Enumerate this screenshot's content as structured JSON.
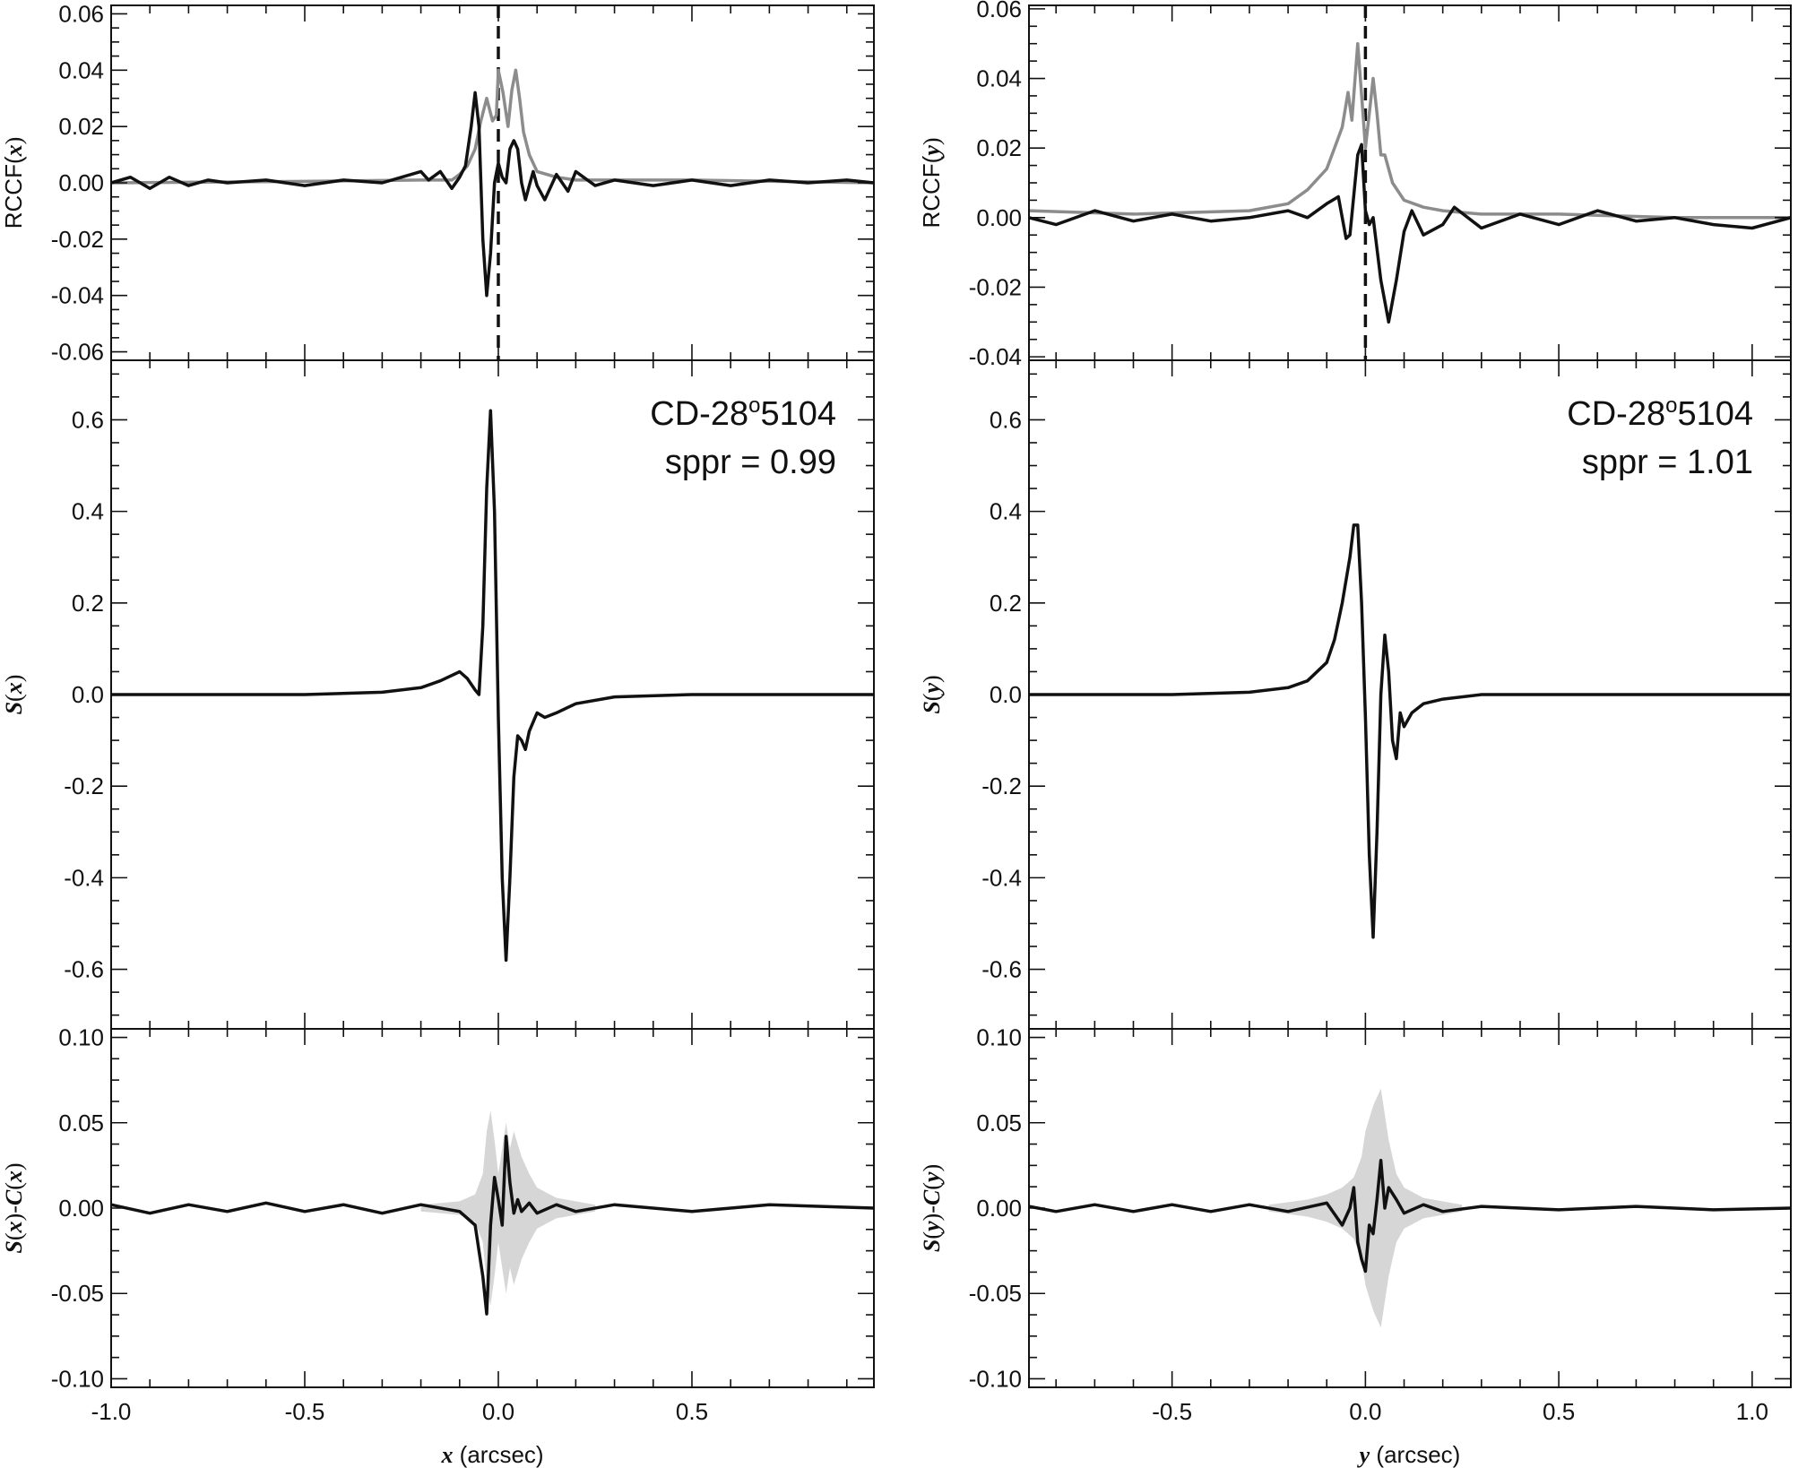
{
  "colors": {
    "black": "#111111",
    "gray": "#8c8c8c",
    "band": "#d6d6d6"
  },
  "chart_data": [
    {
      "id": "x-rccf",
      "type": "line",
      "ylabel": "RCCF(x)",
      "ylabel_parts": [
        "RCCF(",
        "x",
        ")"
      ],
      "xlim": [
        -1.0,
        0.97
      ],
      "ylim": [
        -0.063,
        0.063
      ],
      "yticks": [
        "0.06",
        "0.04",
        "0.02",
        "0.00",
        "-0.02",
        "-0.04",
        "-0.06"
      ],
      "vline": 0.0,
      "series": [
        {
          "color": "gray",
          "x": [
            -1.0,
            -0.5,
            -0.2,
            -0.12,
            -0.1,
            -0.08,
            -0.06,
            -0.045,
            -0.03,
            -0.015,
            -0.005,
            0.0,
            0.012,
            0.025,
            0.035,
            0.045,
            0.055,
            0.065,
            0.08,
            0.1,
            0.15,
            0.2,
            0.3,
            0.5,
            0.97
          ],
          "y": [
            0.0,
            0.0005,
            0.001,
            0.001,
            0.003,
            0.006,
            0.012,
            0.022,
            0.03,
            0.022,
            0.024,
            0.04,
            0.032,
            0.02,
            0.033,
            0.04,
            0.03,
            0.018,
            0.01,
            0.004,
            0.002,
            0.001,
            0.001,
            0.001,
            0.0
          ]
        },
        {
          "color": "black",
          "x": [
            -1.0,
            -0.95,
            -0.9,
            -0.85,
            -0.8,
            -0.75,
            -0.7,
            -0.6,
            -0.5,
            -0.4,
            -0.3,
            -0.2,
            -0.18,
            -0.15,
            -0.12,
            -0.1,
            -0.085,
            -0.07,
            -0.06,
            -0.05,
            -0.04,
            -0.03,
            -0.02,
            -0.01,
            0.0,
            0.01,
            0.02,
            0.03,
            0.04,
            0.05,
            0.06,
            0.07,
            0.08,
            0.09,
            0.1,
            0.12,
            0.15,
            0.18,
            0.2,
            0.22,
            0.25,
            0.3,
            0.4,
            0.5,
            0.6,
            0.7,
            0.8,
            0.9,
            0.97
          ],
          "y": [
            0.0,
            0.002,
            -0.002,
            0.002,
            -0.001,
            0.001,
            0.0,
            0.001,
            -0.001,
            0.001,
            0.0,
            0.004,
            0.001,
            0.004,
            -0.002,
            0.002,
            0.006,
            0.02,
            0.032,
            0.02,
            -0.02,
            -0.04,
            -0.025,
            0.0,
            0.007,
            0.002,
            0.0,
            0.012,
            0.015,
            0.012,
            0.0,
            -0.006,
            -0.001,
            0.004,
            -0.001,
            -0.006,
            0.003,
            -0.003,
            0.004,
            0.002,
            -0.001,
            0.001,
            -0.001,
            0.001,
            -0.001,
            0.001,
            0.0,
            0.001,
            0.0
          ]
        }
      ]
    },
    {
      "id": "x-s",
      "type": "line",
      "ylabel": "S(x)",
      "ylabel_parts": [
        "",
        "S",
        "(",
        "x",
        ")"
      ],
      "xlim": [
        -1.0,
        0.97
      ],
      "ylim": [
        -0.73,
        0.73
      ],
      "yticks": [
        "0.6",
        "0.4",
        "0.2",
        "0.0",
        "-0.2",
        "-0.4",
        "-0.6"
      ],
      "annotation": {
        "line1": "CD-28",
        "superscript": "o",
        "line1_rest": "5104",
        "line2": "sppr = 0.99"
      },
      "series": [
        {
          "color": "black",
          "x": [
            -1.0,
            -0.5,
            -0.3,
            -0.2,
            -0.15,
            -0.1,
            -0.08,
            -0.06,
            -0.05,
            -0.04,
            -0.03,
            -0.02,
            -0.01,
            0.0,
            0.01,
            0.02,
            0.03,
            0.04,
            0.05,
            0.06,
            0.07,
            0.08,
            0.1,
            0.12,
            0.15,
            0.2,
            0.3,
            0.5,
            0.97
          ],
          "y": [
            0.0,
            0.0,
            0.005,
            0.015,
            0.03,
            0.05,
            0.035,
            0.01,
            0.0,
            0.15,
            0.45,
            0.62,
            0.4,
            -0.05,
            -0.4,
            -0.58,
            -0.4,
            -0.18,
            -0.09,
            -0.1,
            -0.12,
            -0.08,
            -0.04,
            -0.05,
            -0.04,
            -0.02,
            -0.005,
            0.0,
            0.0
          ]
        }
      ]
    },
    {
      "id": "x-res",
      "type": "line",
      "ylabel": "S(x)-C(x)",
      "ylabel_parts": [
        "S",
        "(",
        "x",
        ")-",
        "C",
        "(",
        "x",
        ")"
      ],
      "xlim": [
        -1.0,
        0.97
      ],
      "ylim": [
        -0.105,
        0.105
      ],
      "yticks": [
        "0.10",
        "0.05",
        "0.00",
        "-0.05",
        "-0.10"
      ],
      "xticks": [
        "-1.0",
        "-0.5",
        "0.0",
        "0.5"
      ],
      "xlabel": "x (arcsec)",
      "xlabel_parts": [
        "x",
        " (arcsec)"
      ],
      "band": {
        "x": [
          -0.2,
          -0.1,
          -0.06,
          -0.04,
          -0.03,
          -0.02,
          -0.01,
          0.0,
          0.01,
          0.02,
          0.03,
          0.04,
          0.06,
          0.08,
          0.1,
          0.15,
          0.25
        ],
        "half": [
          0.002,
          0.004,
          0.008,
          0.02,
          0.045,
          0.057,
          0.04,
          0.02,
          0.035,
          0.05,
          0.035,
          0.045,
          0.03,
          0.02,
          0.012,
          0.006,
          0.002
        ]
      },
      "series": [
        {
          "color": "black",
          "x": [
            -1.0,
            -0.9,
            -0.8,
            -0.7,
            -0.6,
            -0.5,
            -0.4,
            -0.3,
            -0.2,
            -0.1,
            -0.06,
            -0.04,
            -0.03,
            -0.02,
            -0.01,
            0.0,
            0.01,
            0.02,
            0.03,
            0.04,
            0.05,
            0.06,
            0.08,
            0.1,
            0.15,
            0.2,
            0.3,
            0.5,
            0.7,
            0.97
          ],
          "y": [
            0.002,
            -0.003,
            0.002,
            -0.002,
            0.003,
            -0.002,
            0.002,
            -0.003,
            0.002,
            -0.002,
            -0.01,
            -0.04,
            -0.062,
            -0.01,
            0.018,
            0.005,
            -0.01,
            0.042,
            0.015,
            -0.003,
            0.005,
            -0.002,
            0.003,
            -0.003,
            0.002,
            -0.002,
            0.002,
            -0.002,
            0.002,
            0.0
          ]
        }
      ]
    },
    {
      "id": "y-rccf",
      "type": "line",
      "ylabel": "RCCF(y)",
      "ylabel_parts": [
        "RCCF(",
        "y",
        ")"
      ],
      "xlim": [
        -0.87,
        1.1
      ],
      "ylim": [
        -0.041,
        0.061
      ],
      "yticks": [
        "0.06",
        "0.04",
        "0.02",
        "0.00",
        "-0.02",
        "-0.04"
      ],
      "vline": 0.0,
      "series": [
        {
          "color": "gray",
          "x": [
            -0.87,
            -0.6,
            -0.3,
            -0.2,
            -0.15,
            -0.1,
            -0.08,
            -0.06,
            -0.045,
            -0.035,
            -0.02,
            -0.005,
            0.0,
            0.01,
            0.02,
            0.03,
            0.04,
            0.05,
            0.07,
            0.1,
            0.15,
            0.2,
            0.3,
            0.5,
            0.8,
            1.1
          ],
          "y": [
            0.002,
            0.001,
            0.002,
            0.004,
            0.008,
            0.014,
            0.02,
            0.026,
            0.036,
            0.028,
            0.05,
            0.028,
            0.02,
            0.03,
            0.04,
            0.03,
            0.018,
            0.018,
            0.01,
            0.005,
            0.003,
            0.002,
            0.001,
            0.001,
            0.0,
            0.0
          ]
        },
        {
          "color": "black",
          "x": [
            -0.87,
            -0.8,
            -0.7,
            -0.6,
            -0.5,
            -0.4,
            -0.3,
            -0.2,
            -0.15,
            -0.1,
            -0.07,
            -0.05,
            -0.04,
            -0.02,
            -0.01,
            0.0,
            0.01,
            0.02,
            0.04,
            0.06,
            0.08,
            0.1,
            0.12,
            0.15,
            0.2,
            0.23,
            0.3,
            0.4,
            0.5,
            0.6,
            0.7,
            0.8,
            0.9,
            1.0,
            1.1
          ],
          "y": [
            0.0,
            -0.002,
            0.002,
            -0.001,
            0.001,
            -0.001,
            0.0,
            0.002,
            0.0,
            0.004,
            0.006,
            -0.006,
            -0.005,
            0.018,
            0.021,
            0.002,
            -0.002,
            0.0,
            -0.018,
            -0.03,
            -0.018,
            -0.004,
            0.002,
            -0.005,
            -0.002,
            0.003,
            -0.003,
            0.001,
            -0.002,
            0.002,
            -0.001,
            0.0,
            -0.002,
            -0.003,
            0.0
          ]
        }
      ]
    },
    {
      "id": "y-s",
      "type": "line",
      "ylabel": "S(y)",
      "ylabel_parts": [
        "",
        "S",
        "(",
        "y",
        ")"
      ],
      "xlim": [
        -0.87,
        1.1
      ],
      "ylim": [
        -0.73,
        0.73
      ],
      "yticks": [
        "0.6",
        "0.4",
        "0.2",
        "0.0",
        "-0.2",
        "-0.4",
        "-0.6"
      ],
      "annotation": {
        "line1": "CD-28",
        "superscript": "o",
        "line1_rest": "5104",
        "line2": "sppr = 1.01"
      },
      "series": [
        {
          "color": "black",
          "x": [
            -0.87,
            -0.5,
            -0.3,
            -0.2,
            -0.15,
            -0.1,
            -0.08,
            -0.06,
            -0.04,
            -0.03,
            -0.02,
            -0.01,
            0.0,
            0.01,
            0.02,
            0.03,
            0.04,
            0.05,
            0.06,
            0.07,
            0.08,
            0.09,
            0.1,
            0.12,
            0.15,
            0.2,
            0.3,
            0.5,
            1.1
          ],
          "y": [
            0.0,
            0.0,
            0.005,
            0.015,
            0.03,
            0.07,
            0.12,
            0.2,
            0.3,
            0.37,
            0.37,
            0.2,
            -0.05,
            -0.35,
            -0.53,
            -0.3,
            0.0,
            0.13,
            0.05,
            -0.1,
            -0.14,
            -0.04,
            -0.07,
            -0.04,
            -0.02,
            -0.01,
            0.0,
            0.0,
            0.0
          ]
        }
      ]
    },
    {
      "id": "y-res",
      "type": "line",
      "ylabel": "S(y)-C(y)",
      "ylabel_parts": [
        "S",
        "(",
        "y",
        ")-",
        "C",
        "(",
        "y",
        ")"
      ],
      "xlim": [
        -0.87,
        1.1
      ],
      "ylim": [
        -0.105,
        0.105
      ],
      "yticks": [
        "0.10",
        "0.05",
        "0.00",
        "-0.05",
        "-0.10"
      ],
      "xticks": [
        "-0.5",
        "0.0",
        "0.5",
        "1.0"
      ],
      "xlabel": "y (arcsec)",
      "xlabel_parts": [
        "y",
        " (arcsec)"
      ],
      "band": {
        "x": [
          -0.25,
          -0.15,
          -0.1,
          -0.06,
          -0.03,
          -0.01,
          0.0,
          0.02,
          0.04,
          0.06,
          0.08,
          0.1,
          0.15,
          0.25
        ],
        "half": [
          0.002,
          0.005,
          0.008,
          0.012,
          0.018,
          0.03,
          0.045,
          0.06,
          0.07,
          0.04,
          0.02,
          0.012,
          0.006,
          0.002
        ]
      },
      "series": [
        {
          "color": "black",
          "x": [
            -0.87,
            -0.8,
            -0.7,
            -0.6,
            -0.5,
            -0.4,
            -0.3,
            -0.2,
            -0.1,
            -0.06,
            -0.04,
            -0.03,
            -0.02,
            -0.01,
            0.0,
            0.01,
            0.02,
            0.03,
            0.04,
            0.05,
            0.06,
            0.08,
            0.1,
            0.15,
            0.2,
            0.3,
            0.5,
            0.7,
            0.9,
            1.1
          ],
          "y": [
            0.001,
            -0.002,
            0.002,
            -0.002,
            0.002,
            -0.002,
            0.002,
            -0.002,
            0.003,
            -0.01,
            0.0,
            0.012,
            -0.02,
            -0.03,
            -0.037,
            -0.01,
            -0.015,
            0.005,
            0.028,
            0.0,
            0.012,
            0.005,
            -0.003,
            0.002,
            -0.002,
            0.001,
            -0.001,
            0.001,
            -0.001,
            0.0
          ]
        }
      ]
    }
  ]
}
